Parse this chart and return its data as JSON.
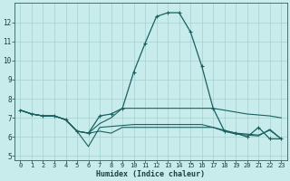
{
  "xlabel": "Humidex (Indice chaleur)",
  "background_color": "#c8ecec",
  "grid_color": "#a8d0d0",
  "line_color": "#1a6060",
  "xlim": [
    -0.5,
    23.5
  ],
  "ylim": [
    4.8,
    13.0
  ],
  "xticks": [
    0,
    1,
    2,
    3,
    4,
    5,
    6,
    7,
    8,
    9,
    10,
    11,
    12,
    13,
    14,
    15,
    16,
    17,
    18,
    19,
    20,
    21,
    22,
    23
  ],
  "yticks": [
    5,
    6,
    7,
    8,
    9,
    10,
    11,
    12
  ],
  "line1_y": [
    7.4,
    7.2,
    7.1,
    7.1,
    6.9,
    6.3,
    6.2,
    7.1,
    7.2,
    7.5,
    9.4,
    10.9,
    12.3,
    12.5,
    12.5,
    11.5,
    9.7,
    7.5,
    6.3,
    6.2,
    6.0,
    6.5,
    5.9,
    5.9
  ],
  "line2_y": [
    7.4,
    7.2,
    7.1,
    7.1,
    6.9,
    6.3,
    5.5,
    6.5,
    6.55,
    6.6,
    6.65,
    6.65,
    6.65,
    6.65,
    6.65,
    6.65,
    6.65,
    6.5,
    6.3,
    6.15,
    6.1,
    6.05,
    6.4,
    5.9
  ],
  "line3_y": [
    7.4,
    7.2,
    7.1,
    7.1,
    6.9,
    6.3,
    6.2,
    6.7,
    7.0,
    7.5,
    7.5,
    7.5,
    7.5,
    7.5,
    7.5,
    7.5,
    7.5,
    7.5,
    7.4,
    7.3,
    7.2,
    7.15,
    7.1,
    7.0
  ],
  "line4_y": [
    7.4,
    7.2,
    7.1,
    7.1,
    6.9,
    6.3,
    6.2,
    6.3,
    6.2,
    6.5,
    6.5,
    6.5,
    6.5,
    6.5,
    6.5,
    6.5,
    6.5,
    6.5,
    6.35,
    6.2,
    6.15,
    6.1,
    6.35,
    5.9
  ]
}
